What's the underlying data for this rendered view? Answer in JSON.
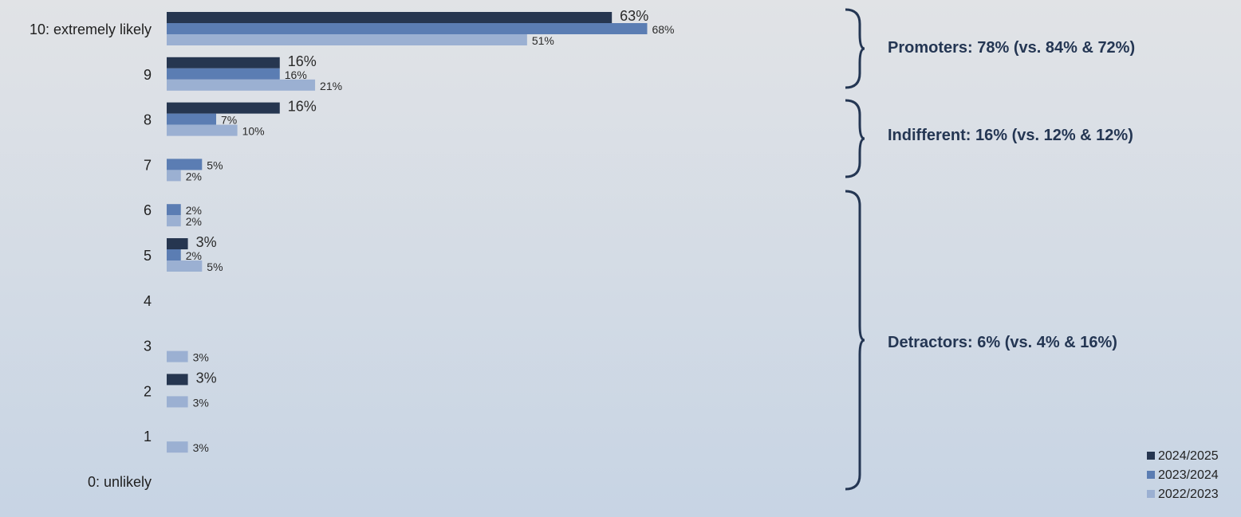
{
  "chart_data": {
    "type": "bar",
    "orientation": "horizontal",
    "categories": [
      "10: extremely likely",
      "9",
      "8",
      "7",
      "6",
      "5",
      "4",
      "3",
      "2",
      "1",
      "0: unlikely"
    ],
    "series": [
      {
        "name": "2024/2025",
        "color": "#263650",
        "values": [
          63,
          16,
          16,
          null,
          null,
          3,
          null,
          null,
          3,
          null,
          null
        ]
      },
      {
        "name": "2023/2024",
        "color": "#5b7db3",
        "values": [
          68,
          16,
          7,
          5,
          2,
          2,
          null,
          null,
          null,
          null,
          null
        ]
      },
      {
        "name": "2022/2023",
        "color": "#9bb0d2",
        "values": [
          51,
          21,
          10,
          2,
          2,
          5,
          null,
          3,
          3,
          3,
          null
        ]
      }
    ],
    "value_suffix": "%",
    "xlim": [
      0,
      100
    ],
    "grid": false,
    "legend_position": "bottom-right",
    "groups": [
      {
        "label": "Promoters: 78% (vs. 84% & 72%)",
        "categories": [
          "10: extremely likely",
          "9"
        ]
      },
      {
        "label": "Indifferent: 16% (vs. 12% & 12%)",
        "categories": [
          "8",
          "7"
        ]
      },
      {
        "label": "Detractors: 6% (vs. 4% & 16%)",
        "categories": [
          "6",
          "5",
          "4",
          "3",
          "2",
          "1",
          "0: unlikely"
        ]
      }
    ]
  }
}
